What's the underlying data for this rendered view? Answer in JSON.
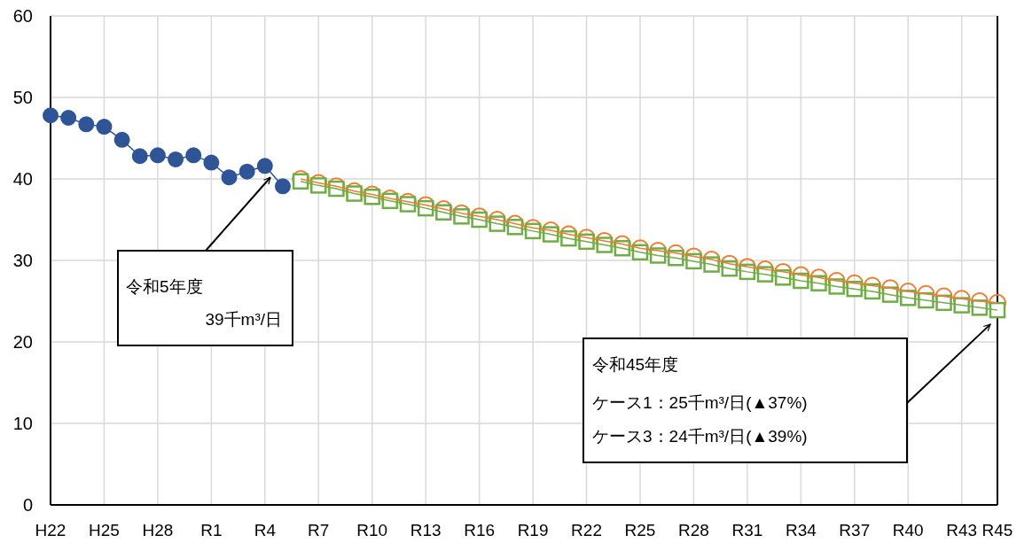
{
  "chart_data": {
    "type": "line",
    "categories": [
      "H22",
      null,
      null,
      "H25",
      null,
      null,
      "H28",
      null,
      null,
      "R1",
      null,
      null,
      "R4",
      null,
      null,
      "R7",
      null,
      null,
      "R10",
      null,
      null,
      "R13",
      null,
      null,
      "R16",
      null,
      null,
      "R19",
      null,
      null,
      "R22",
      null,
      null,
      "R25",
      null,
      null,
      "R28",
      null,
      null,
      "R31",
      null,
      null,
      "R34",
      null,
      null,
      "R37",
      null,
      null,
      "R40",
      null,
      null,
      "R43",
      null,
      "R45"
    ],
    "series": [
      {
        "color": "#2f5597",
        "marker": "circle",
        "values": [
          47.8,
          47.5,
          46.7,
          46.4,
          44.8,
          42.8,
          42.9,
          42.4,
          42.9,
          42.0,
          40.2,
          40.9,
          41.6,
          39.1,
          null,
          null,
          null,
          null,
          null,
          null,
          null,
          null,
          null,
          null,
          null,
          null,
          null,
          null,
          null,
          null,
          null,
          null,
          null,
          null,
          null,
          null,
          null,
          null,
          null,
          null,
          null,
          null,
          null,
          null,
          null,
          null,
          null,
          null,
          null,
          null,
          null,
          null,
          null,
          null
        ]
      },
      {
        "color": "#ed7d31",
        "marker": "circle",
        "values": [
          null,
          null,
          null,
          null,
          null,
          null,
          null,
          null,
          null,
          null,
          null,
          null,
          null,
          null,
          40.0,
          39.5,
          39.1,
          38.5,
          38.1,
          37.6,
          37.2,
          36.8,
          36.3,
          35.8,
          35.4,
          35.0,
          34.5,
          34.0,
          33.7,
          33.2,
          32.8,
          32.4,
          32.0,
          31.5,
          31.2,
          30.9,
          30.5,
          30.1,
          29.6,
          29.2,
          28.9,
          28.6,
          28.2,
          27.9,
          27.5,
          27.2,
          26.9,
          26.6,
          26.2,
          25.9,
          25.6,
          25.3,
          25.0,
          24.8
        ]
      },
      {
        "color": "#70ad47",
        "marker": "square",
        "values": [
          null,
          null,
          null,
          null,
          null,
          null,
          null,
          null,
          null,
          null,
          null,
          null,
          null,
          null,
          39.7,
          39.2,
          38.8,
          38.2,
          37.8,
          37.3,
          36.9,
          36.4,
          35.9,
          35.4,
          35.0,
          34.5,
          34.1,
          33.6,
          33.2,
          32.7,
          32.3,
          31.9,
          31.5,
          31.0,
          30.6,
          30.3,
          29.9,
          29.5,
          29.0,
          28.6,
          28.3,
          27.9,
          27.5,
          27.2,
          26.8,
          26.5,
          26.2,
          25.8,
          25.4,
          25.1,
          24.8,
          24.5,
          24.2,
          23.9
        ]
      }
    ],
    "ylim": [
      0,
      60
    ],
    "yticks": [
      0,
      10,
      20,
      30,
      40,
      50,
      60
    ],
    "grid": true,
    "annotations": [
      "令和5年度",
      "39千m³/日",
      "令和45年度",
      "ケース1：25千m³/日(▲37%)",
      "ケース3：24千m³/日(▲39%)"
    ]
  }
}
